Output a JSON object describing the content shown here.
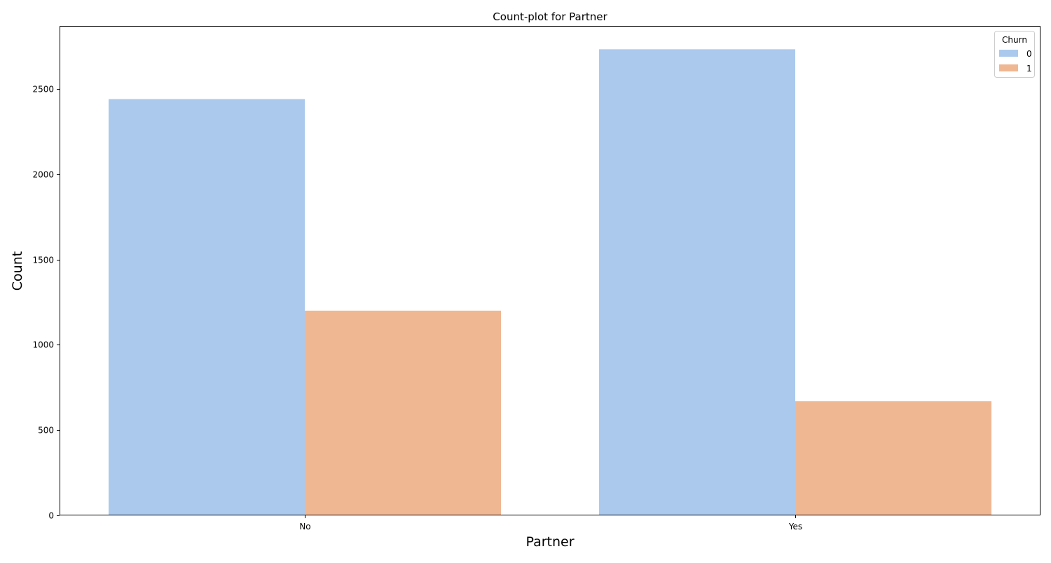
{
  "chart_data": {
    "type": "bar",
    "title": "Count-plot for Partner",
    "xlabel": "Partner",
    "ylabel": "Count",
    "categories": [
      "No",
      "Yes"
    ],
    "series": [
      {
        "name": "0",
        "values": [
          2441,
          2733
        ],
        "color": "#abc9ed"
      },
      {
        "name": "1",
        "values": [
          1200,
          669
        ],
        "color": "#f0b793"
      }
    ],
    "ylim": [
      0,
      2870
    ],
    "yticks": [
      0,
      500,
      1000,
      1500,
      2000,
      2500
    ],
    "legend": {
      "title": "Churn",
      "placement": "top-right"
    },
    "grid": false
  }
}
